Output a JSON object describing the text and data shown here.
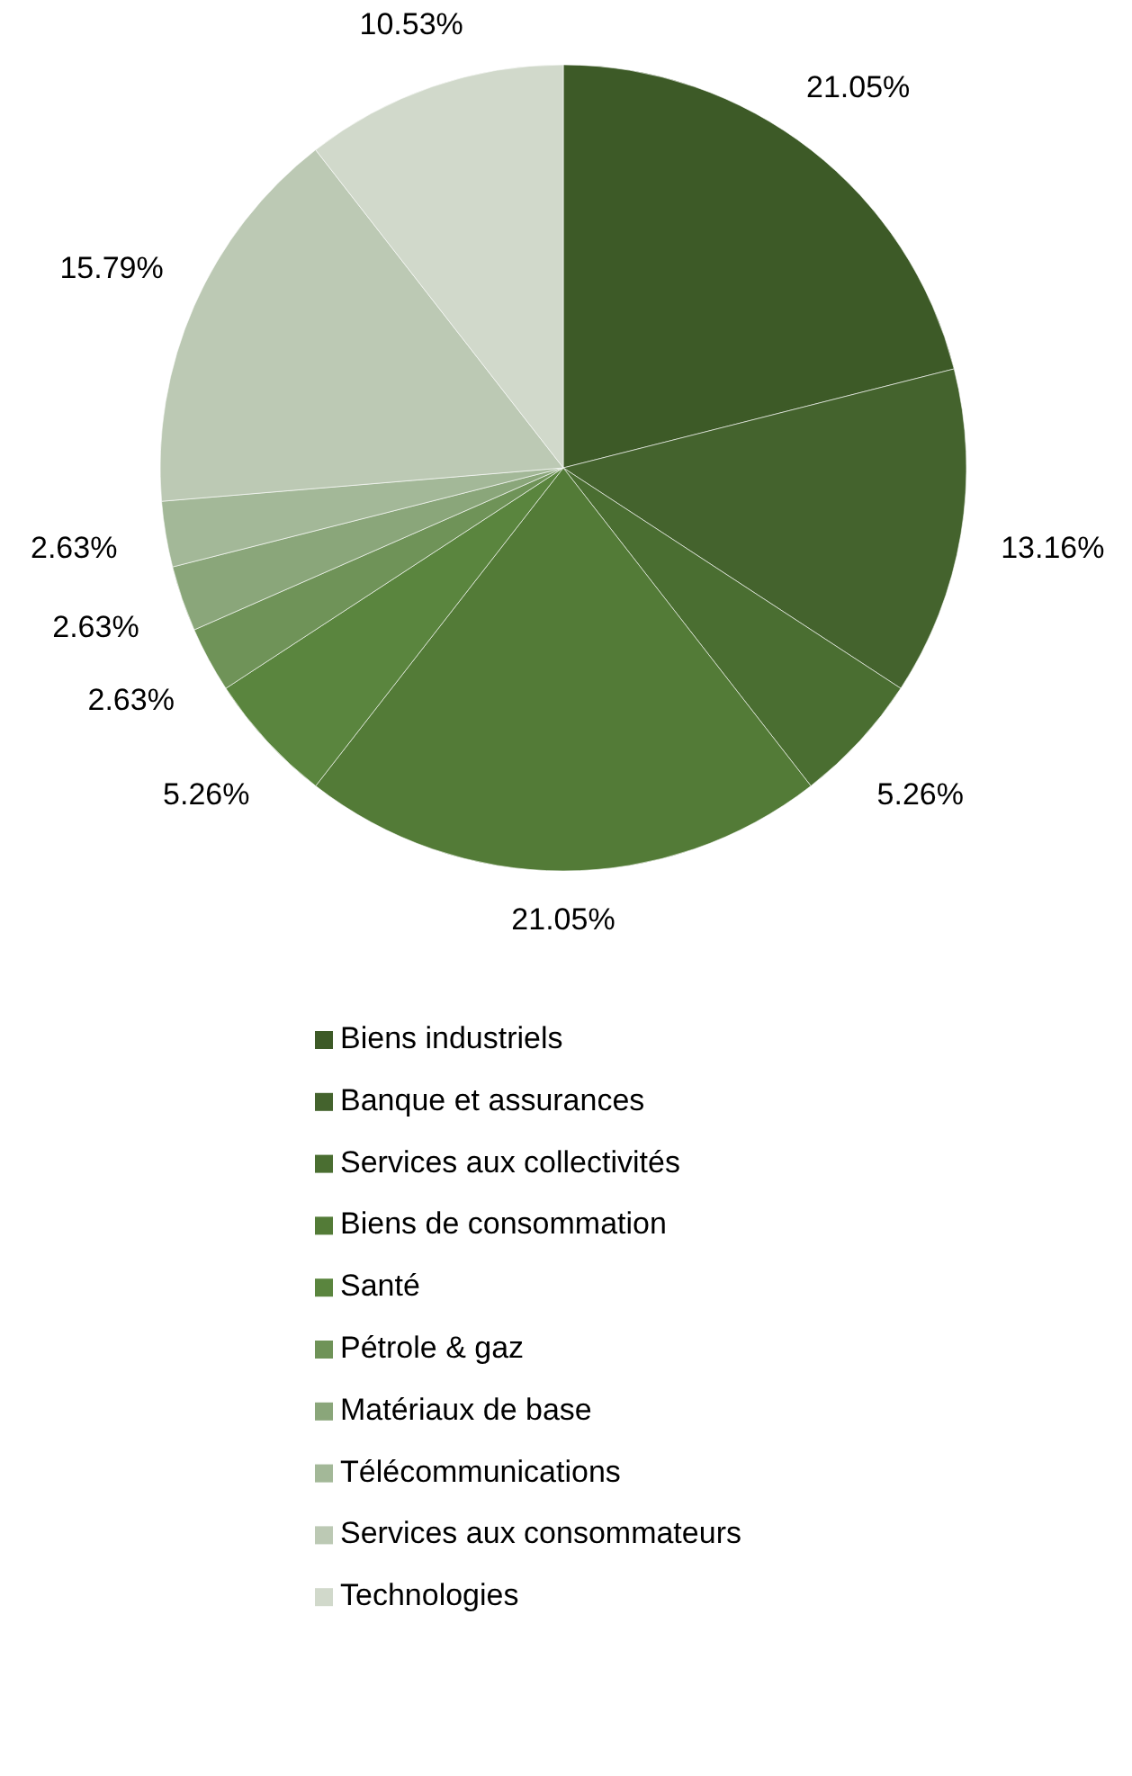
{
  "chart_data": {
    "type": "pie",
    "categories": [
      "Biens industriels",
      "Banque et assurances",
      "Services aux collectivités",
      "Biens de consommation",
      "Santé",
      "Pétrole & gaz",
      "Matériaux de base",
      "Télécommunications",
      "Services aux consommateurs",
      "Technologies"
    ],
    "values": [
      21.05,
      13.16,
      5.26,
      21.05,
      5.26,
      2.63,
      2.63,
      2.63,
      15.79,
      10.53
    ],
    "colors": [
      "#3d5a27",
      "#44632d",
      "#4a6e31",
      "#537b37",
      "#5a853e",
      "#6f9358",
      "#8aa67a",
      "#a3b898",
      "#bcc9b4",
      "#d1d9cb"
    ],
    "value_labels": [
      "21.05%",
      "13.16%",
      "5.26%",
      "21.05%",
      "5.26%",
      "2.63%",
      "2.63%",
      "2.63%",
      "15.79%",
      "10.53%"
    ],
    "legend": "bottom"
  }
}
